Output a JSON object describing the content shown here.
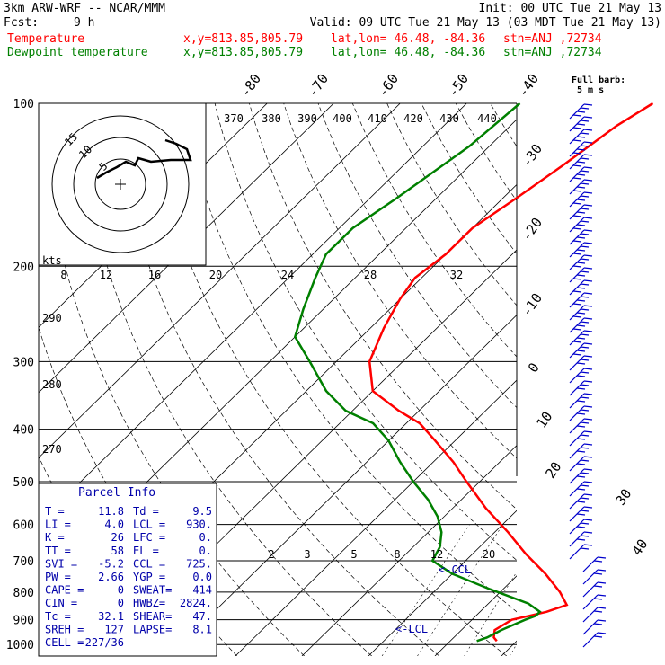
{
  "header": {
    "model": "3km ARW-WRF -- NCAR/MMM",
    "init": "Init: 00 UTC Tue 21 May 13",
    "fcst_label": "Fcst:",
    "fcst_value": "9 h",
    "valid": "Valid: 09 UTC Tue 21 May 13 (03 MDT Tue 21 May 13)",
    "temp_line": {
      "label": "Temperature",
      "xy": "x,y=813.85,805.79",
      "latlon": "lat,lon= 46.48, -84.36",
      "stn": "stn=ANJ ,72734"
    },
    "dew_line": {
      "label": "Dewpoint temperature",
      "xy": "x,y=813.85,805.79",
      "latlon": "lat,lon= 46.48, -84.36",
      "stn": "stn=ANJ ,72734"
    }
  },
  "colors": {
    "temperature": "#ff0000",
    "dewpoint": "#008000",
    "parcel": "#0000aa",
    "grid": "#000000",
    "wind": "#0000cc"
  },
  "chart_data": {
    "type": "line",
    "ylabel_ticks": [
      "100",
      "200",
      "300",
      "400",
      "500",
      "600",
      "700",
      "800",
      "900",
      "1000"
    ],
    "pressure_levels": [
      100,
      200,
      300,
      400,
      500,
      600,
      700,
      800,
      900,
      1000
    ],
    "isotherm_labels": [
      "-80",
      "-70",
      "-60",
      "-50",
      "-40",
      "-30",
      "-20",
      "-10",
      "0",
      "10",
      "20",
      "30",
      "40"
    ],
    "isentrope_labels": [
      "370",
      "380",
      "390",
      "400",
      "410",
      "420",
      "430",
      "440"
    ],
    "dry_adiabat_labels": [
      "290",
      "280",
      "270"
    ],
    "mixing_ratio_labels": [
      "2",
      "3",
      "5",
      "8",
      "12",
      "20"
    ],
    "hodograph_speed_labels": [
      "8",
      "12",
      "16",
      "20",
      "24",
      "28",
      "32"
    ],
    "hodograph_unit": "kts",
    "hodograph_rings": [
      "5",
      "10",
      "15"
    ],
    "wind_legend": {
      "title": "Full barb:",
      "value": "5 m s"
    },
    "series": [
      {
        "name": "Temperature",
        "pressure": [
          100,
          110,
          130,
          150,
          170,
          190,
          210,
          230,
          260,
          300,
          340,
          370,
          390,
          420,
          460,
          500,
          560,
          620,
          680,
          740,
          800,
          845,
          870,
          885,
          900,
          940,
          970,
          985
        ],
        "temperature": [
          -52,
          -54,
          -56,
          -58,
          -60,
          -60,
          -61,
          -60,
          -58,
          -55,
          -50,
          -43,
          -38,
          -33,
          -27,
          -22,
          -15,
          -8,
          -2,
          4,
          9,
          12,
          10,
          8,
          6,
          5,
          6,
          7
        ]
      },
      {
        "name": "Dewpoint temperature",
        "pressure": [
          100,
          120,
          150,
          170,
          190,
          210,
          240,
          270,
          300,
          340,
          370,
          390,
          420,
          460,
          500,
          540,
          580,
          620,
          660,
          700,
          740,
          790,
          840,
          870,
          885,
          900,
          940,
          970,
          985
        ],
        "temperature": [
          -72,
          -73,
          -76,
          -78,
          -78,
          -76,
          -73,
          -70,
          -64,
          -57,
          -51,
          -45,
          -40,
          -35,
          -30,
          -25,
          -21,
          -18,
          -16,
          -15,
          -10,
          -2,
          6,
          9,
          9,
          8,
          6,
          5,
          4
        ]
      }
    ],
    "annotations": [
      "<-CCL",
      "<-LCL"
    ]
  },
  "parcel_info": {
    "title": "Parcel Info",
    "rows": [
      [
        "T   =",
        "11.8",
        "Td  =",
        "9.5"
      ],
      [
        "LI  =",
        "4.0",
        "LCL =",
        "930."
      ],
      [
        "K   =",
        "26",
        "LFC =",
        "0."
      ],
      [
        "TT  =",
        "58",
        "EL  =",
        "0."
      ],
      [
        "SVI =",
        "-5.2",
        "CCL =",
        "725."
      ],
      [
        "PW  =",
        "2.66",
        "YGP =",
        "0.0"
      ],
      [
        "CAPE =",
        "0",
        "SWEAT=",
        "414"
      ],
      [
        "CIN  =",
        "0",
        "HWBZ=",
        "2824."
      ],
      [
        "Tc   =",
        "32.1",
        "SHEAR=",
        "47."
      ],
      [
        "SREH =",
        "127",
        "LAPSE=",
        "8.1"
      ],
      [
        "CELL =",
        "227/36",
        "",
        ""
      ]
    ]
  }
}
